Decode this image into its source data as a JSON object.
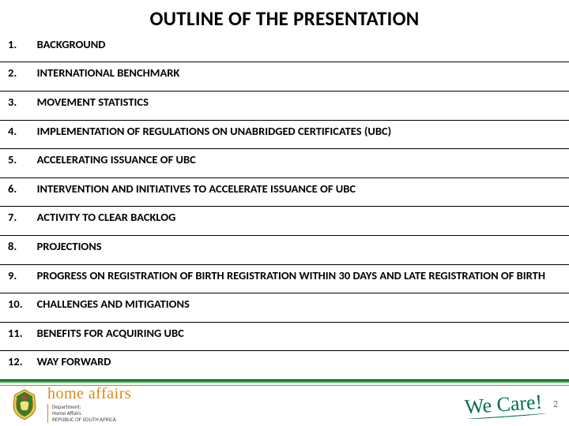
{
  "title": "OUTLINE OF THE PRESENTATION",
  "items": [
    {
      "num": "1.",
      "text": "BACKGROUND"
    },
    {
      "num": "2.",
      "text": "INTERNATIONAL BENCHMARK"
    },
    {
      "num": "3.",
      "text": "MOVEMENT STATISTICS"
    },
    {
      "num": "4.",
      "text": "IMPLEMENTATION OF REGULATIONS ON UNABRIDGED CERTIFICATES (UBC)"
    },
    {
      "num": "5.",
      "text": "ACCELERATING ISSUANCE OF UBC"
    },
    {
      "num": "6.",
      "text": "INTERVENTION AND INITIATIVES TO ACCELERATE ISSUANCE OF UBC"
    },
    {
      "num": "7.",
      "text": " ACTIVITY TO CLEAR BACKLOG"
    },
    {
      "num": "8.",
      "text": "PROJECTIONS"
    },
    {
      "num": "9.",
      "text": "PROGRESS ON REGISTRATION OF BIRTH REGISTRATION WITHIN 30 DAYS AND LATE REGISTRATION OF BIRTH"
    },
    {
      "num": "10.",
      "text": "CHALLENGES AND MITIGATIONS"
    },
    {
      "num": "11.",
      "text": "BENEFITS FOR ACQUIRING UBC"
    },
    {
      "num": "12.",
      "text": "WAY FORWARD"
    }
  ],
  "footer": {
    "brand": "home affairs",
    "sub1": "Department:",
    "sub2": "Home Affairs",
    "sub3": "REPUBLIC OF SOUTH AFRICA",
    "wecare": "We Care!",
    "page": "2"
  },
  "colors": {
    "accent_green": "#2aa43a",
    "accent_gold": "#b8860b",
    "brand_orange": "#d98a1a",
    "wecare_green": "#00704a",
    "text": "#000000",
    "muted": "#7a7a7a"
  }
}
